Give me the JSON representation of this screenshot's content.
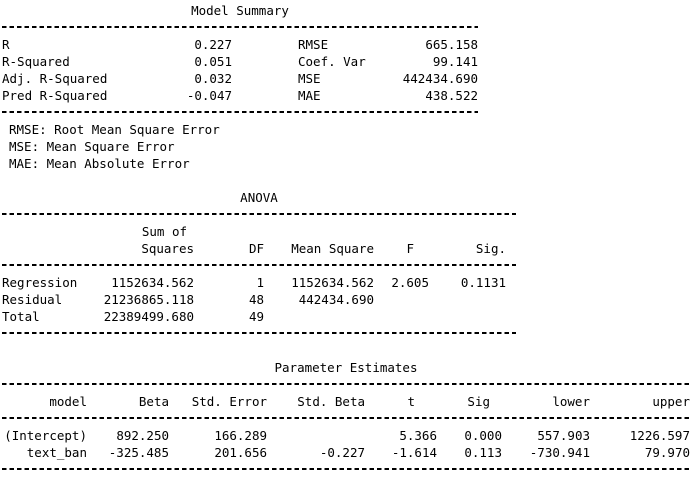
{
  "colors": {
    "foreground": "#000000",
    "background": "#ffffff"
  },
  "model_summary": {
    "title": "Model Summary",
    "left": [
      {
        "label": "R",
        "value": "0.227"
      },
      {
        "label": "R-Squared",
        "value": "0.051"
      },
      {
        "label": "Adj. R-Squared",
        "value": "0.032"
      },
      {
        "label": "Pred R-Squared",
        "value": "-0.047"
      }
    ],
    "right": [
      {
        "label": "RMSE",
        "value": "665.158"
      },
      {
        "label": "Coef. Var",
        "value": "99.141"
      },
      {
        "label": "MSE",
        "value": "442434.690"
      },
      {
        "label": "MAE",
        "value": "438.522"
      }
    ],
    "notes": [
      "RMSE: Root Mean Square Error",
      "MSE: Mean Square Error",
      "MAE: Mean Absolute Error"
    ]
  },
  "anova": {
    "title": "ANOVA",
    "sum_of_label": "Sum of",
    "columns": [
      "Squares",
      "DF",
      "Mean Square",
      "F",
      "Sig."
    ],
    "rows": [
      {
        "source": "Regression",
        "sum_squares": "1152634.562",
        "df": "1",
        "mean_square": "1152634.562",
        "f": "2.605",
        "sig": "0.1131"
      },
      {
        "source": "Residual",
        "sum_squares": "21236865.118",
        "df": "48",
        "mean_square": "442434.690",
        "f": "",
        "sig": ""
      },
      {
        "source": "Total",
        "sum_squares": "22389499.680",
        "df": "49",
        "mean_square": "",
        "f": "",
        "sig": ""
      }
    ]
  },
  "parameter_estimates": {
    "title": "Parameter Estimates",
    "headers": [
      "model",
      "Beta",
      "Std. Error",
      "Std. Beta",
      "t",
      "Sig",
      "lower",
      "upper"
    ],
    "rows": [
      {
        "model": "(Intercept)",
        "beta": "892.250",
        "std_error": "166.289",
        "std_beta": "",
        "t": "5.366",
        "sig": "0.000",
        "lower": "557.903",
        "upper": "1226.597"
      },
      {
        "model": "text_ban",
        "beta": "-325.485",
        "std_error": "201.656",
        "std_beta": "-0.227",
        "t": "-1.614",
        "sig": "0.113",
        "lower": "-730.941",
        "upper": "79.970"
      }
    ]
  }
}
